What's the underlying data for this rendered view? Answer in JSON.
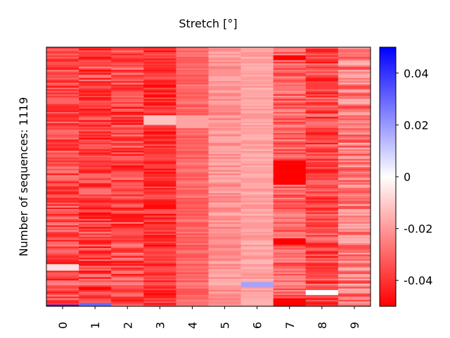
{
  "chart_data": {
    "type": "heatmap",
    "title": "Stretch [°]",
    "ylabel": "Number of sequences: 1119",
    "xlabel": "",
    "x_categories": [
      "0",
      "1",
      "2",
      "3",
      "4",
      "5",
      "6",
      "7",
      "8",
      "9"
    ],
    "rows": 160,
    "grid": false,
    "colormap": "bwr",
    "colorbar": {
      "position": "right",
      "vmin": -0.05,
      "vmax": 0.05,
      "ticks": [
        0.04,
        0.02,
        0,
        -0.02,
        -0.04
      ],
      "tick_labels": [
        "0.04",
        "0.02",
        "0",
        "-0.02",
        "-0.04"
      ]
    },
    "columns": [
      {
        "label": "0",
        "mean": -0.035,
        "variation": 0.011,
        "highlights": [
          {
            "start": 0.835,
            "end": 0.865,
            "value": -0.006
          },
          {
            "start": 0.995,
            "end": 1.0,
            "value": 0.045
          }
        ]
      },
      {
        "label": "1",
        "mean": -0.037,
        "variation": 0.012,
        "highlights": [
          {
            "start": 0.985,
            "end": 1.0,
            "value": 0.03
          }
        ]
      },
      {
        "label": "2",
        "mean": -0.036,
        "variation": 0.012,
        "highlights": []
      },
      {
        "label": "3",
        "mean": -0.041,
        "variation": 0.008,
        "highlights": [
          {
            "start": 0.26,
            "end": 0.3,
            "value": -0.012
          }
        ]
      },
      {
        "label": "4",
        "mean": -0.03,
        "variation": 0.005,
        "highlights": [
          {
            "start": 0.26,
            "end": 0.31,
            "value": -0.018
          },
          {
            "start": 0.41,
            "end": 0.415,
            "value": -0.05
          }
        ]
      },
      {
        "label": "5",
        "mean": -0.021,
        "variation": 0.006,
        "highlights": []
      },
      {
        "label": "6",
        "mean": -0.018,
        "variation": 0.004,
        "highlights": [
          {
            "start": 0.905,
            "end": 0.925,
            "value": 0.018
          }
        ]
      },
      {
        "label": "7",
        "mean": -0.031,
        "variation": 0.01,
        "highlights": [
          {
            "start": 0.03,
            "end": 0.05,
            "value": -0.05
          },
          {
            "start": 0.44,
            "end": 0.53,
            "value": -0.05
          },
          {
            "start": 0.735,
            "end": 0.765,
            "value": -0.05
          },
          {
            "start": 0.97,
            "end": 1.0,
            "value": -0.05
          }
        ]
      },
      {
        "label": "8",
        "mean": -0.036,
        "variation": 0.011,
        "highlights": [
          {
            "start": 0.94,
            "end": 0.955,
            "value": 0.0
          }
        ]
      },
      {
        "label": "9",
        "mean": -0.026,
        "variation": 0.012,
        "highlights": []
      }
    ]
  }
}
